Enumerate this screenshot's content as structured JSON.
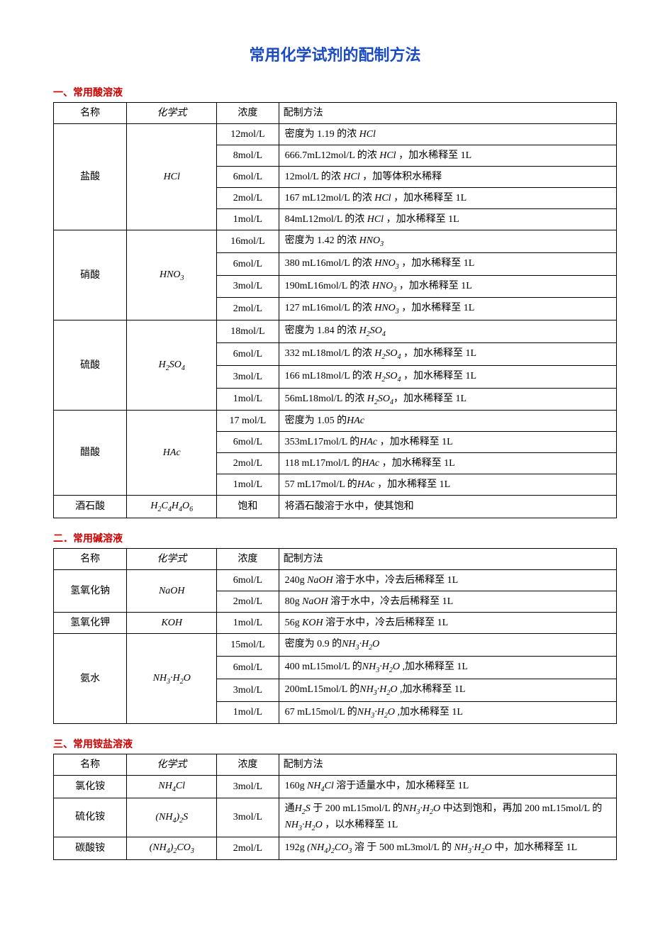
{
  "doc_title": "常用化学试剂的配制方法",
  "headers": {
    "name": "名称",
    "formula": "化学式",
    "concentration": "浓度",
    "method": "配制方法"
  },
  "sections": [
    {
      "heading": "一、常用酸溶液",
      "reagents": [
        {
          "name": "盐酸",
          "formula_html": "<span class='fchem'>HCl</span>",
          "rows": [
            {
              "conc": "12mol/L",
              "method_html": "密度为 1.19 的浓 <span class='fchem'>HCl</span>"
            },
            {
              "conc": "8mol/L",
              "method_html": "666.7mL12mol/L 的浓 <span class='fchem'>HCl</span> ，加水稀释至 1L"
            },
            {
              "conc": "6mol/L",
              "method_html": "12mol/L 的浓 <span class='fchem'>HCl</span> ，加等体积水稀释"
            },
            {
              "conc": "2mol/L",
              "method_html": "167 mL12mol/L 的浓 <span class='fchem'>HCl</span> ，加水稀释至 1L"
            },
            {
              "conc": "1mol/L",
              "method_html": "84mL12mol/L 的浓 <span class='fchem'>HCl</span> ，加水稀释至 1L"
            }
          ]
        },
        {
          "name": "硝酸",
          "formula_html": "<span class='fchem'>HNO<sub>3</sub></span>",
          "rows": [
            {
              "conc": "16mol/L",
              "method_html": "密度为 1.42 的浓 <span class='fchem'>HNO<sub>3</sub></span>"
            },
            {
              "conc": "6mol/L",
              "method_html": "380 mL16mol/L 的浓 <span class='fchem'>HNO<sub>3</sub></span> ，加水稀释至 1L"
            },
            {
              "conc": "3mol/L",
              "method_html": "190mL16mol/L 的浓 <span class='fchem'>HNO<sub>3</sub></span> ，加水稀释至 1L"
            },
            {
              "conc": "2mol/L",
              "method_html": "127 mL16mol/L 的浓 <span class='fchem'>HNO<sub>3</sub></span> ，加水稀释至 1L"
            }
          ]
        },
        {
          "name": "硫酸",
          "formula_html": "<span class='fchem'>H<sub>2</sub>SO<sub>4</sub></span>",
          "rows": [
            {
              "conc": "18mol/L",
              "method_html": "密度为 1.84 的浓 <span class='fchem'>H<sub>2</sub>SO<sub>4</sub></span>"
            },
            {
              "conc": "6mol/L",
              "method_html": "332 mL18mol/L 的浓 <span class='fchem'>H<sub>2</sub>SO<sub>4</sub></span> ，加水稀释至 1L"
            },
            {
              "conc": "3mol/L",
              "method_html": "166 mL18mol/L 的浓 <span class='fchem'>H<sub>2</sub>SO<sub>4</sub></span> ，加水稀释至 1L"
            },
            {
              "conc": "1mol/L",
              "method_html": "56mL18mol/L 的浓 <span class='fchem'>H<sub>2</sub>SO<sub>4</sub></span>，加水稀释至 1L"
            }
          ]
        },
        {
          "name": "醋酸",
          "formula_html": "<span class='fchem'>HAc</span>",
          "rows": [
            {
              "conc": "17 mol/L",
              "method_html": "密度为 1.05 的<span class='fchem'>HAc</span>"
            },
            {
              "conc": "6mol/L",
              "method_html": "353mL17mol/L 的<span class='fchem'>HAc</span> ，加水稀释至 1L"
            },
            {
              "conc": "2mol/L",
              "method_html": "118 mL17mol/L 的<span class='fchem'>HAc</span> ，加水稀释至 1L"
            },
            {
              "conc": "1mol/L",
              "method_html": "57 mL17mol/L 的<span class='fchem'>HAc</span> ，加水稀释至 1L"
            }
          ]
        },
        {
          "name": "酒石酸",
          "formula_html": "<span class='fchem'>H<sub>2</sub>C<sub>4</sub>H<sub>4</sub>O<sub>6</sub></span>",
          "rows": [
            {
              "conc": "饱和",
              "method_html": "将酒石酸溶于水中，使其饱和"
            }
          ]
        }
      ]
    },
    {
      "heading": "二．常用碱溶液",
      "reagents": [
        {
          "name": "氢氧化钠",
          "formula_html": "<span class='fchem'>NaOH</span>",
          "rows": [
            {
              "conc": "6mol/L",
              "method_html": "240g <span class='fchem'>NaOH</span> 溶于水中，冷去后稀释至 1L"
            },
            {
              "conc": "2mol/L",
              "method_html": "80g <span class='fchem'>NaOH</span> 溶于水中，冷去后稀释至 1L"
            }
          ]
        },
        {
          "name": "氢氧化钾",
          "formula_html": "<span class='fchem'>KOH</span>",
          "rows": [
            {
              "conc": "1mol/L",
              "method_html": "56g <span class='fchem'>KOH</span> 溶于水中，冷去后稀释至 1L"
            }
          ]
        },
        {
          "name": "氨水",
          "formula_html": "<span class='fchem'>NH<sub>3</sub>·H<sub>2</sub>O</span>",
          "rows": [
            {
              "conc": "15mol/L",
              "method_html": "密度为 0.9 的<span class='fchem'>NH<sub>3</sub>·H<sub>2</sub>O</span>"
            },
            {
              "conc": "6mol/L",
              "method_html": "400 mL15mol/L 的<span class='fchem'>NH<sub>3</sub>·H<sub>2</sub>O</span> ,加水稀释至 1L"
            },
            {
              "conc": "3mol/L",
              "method_html": "200mL15mol/L 的<span class='fchem'>NH<sub>3</sub>·H<sub>2</sub>O</span> ,加水稀释至 1L"
            },
            {
              "conc": "1mol/L",
              "method_html": "67 mL15mol/L 的<span class='fchem'>NH<sub>3</sub>·H<sub>2</sub>O</span> ,加水稀释至 1L"
            }
          ]
        }
      ]
    },
    {
      "heading": "三、常用铵盐溶液",
      "reagents": [
        {
          "name": "氯化铵",
          "formula_html": "<span class='fchem'>NH<sub>4</sub>Cl</span>",
          "rows": [
            {
              "conc": "3mol/L",
              "method_html": "160g <span class='fchem'>NH<sub>4</sub>Cl</span> 溶于适量水中，加水稀释至 1L"
            }
          ]
        },
        {
          "name": "硫化铵",
          "formula_html": "<span class='fchem'>(NH<sub>4</sub>)<sub>2</sub>S</span>",
          "rows": [
            {
              "conc": "3mol/L",
              "method_html": "通<span class='fchem'>H<sub>2</sub>S</span> 于 200 mL15mol/L 的<span class='fchem'>NH<sub>3</sub>·H<sub>2</sub>O</span> 中达到饱和，再加 200 mL15mol/L 的<span class='fchem'>NH<sub>3</sub>·H<sub>2</sub>O</span> ，以水稀释至 1L"
            }
          ]
        },
        {
          "name": "碳酸铵",
          "formula_html": "<span class='fchem'>(NH<sub>4</sub>)<sub>2</sub>CO<sub>3</sub></span>",
          "rows": [
            {
              "conc": "2mol/L",
              "method_html": "192g <span class='fchem'>(NH<sub>4</sub>)<sub>2</sub>CO<sub>3</sub></span> 溶 于 500 mL3mol/L 的 <span class='fchem'>NH<sub>3</sub>·H<sub>2</sub>O</span> 中，加水稀释至 1L"
            }
          ]
        }
      ]
    }
  ],
  "style": {
    "title_color": "#1a4bbf",
    "heading_color": "#cc0000",
    "border_color": "#000000",
    "background_color": "#ffffff",
    "base_fontsize": 14,
    "title_fontsize": 22,
    "col_widths_percent": {
      "name": 13,
      "formula": 16,
      "concentration": 11,
      "method": 60
    },
    "font_family_body": "SimSun",
    "font_family_formula": "Times New Roman"
  }
}
